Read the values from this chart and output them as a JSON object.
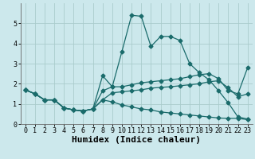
{
  "xlabel": "Humidex (Indice chaleur)",
  "background_color": "#cce8ec",
  "grid_color": "#aacccc",
  "line_color": "#1a6b6b",
  "xlim": [
    -0.5,
    23.5
  ],
  "ylim": [
    0,
    6
  ],
  "xticks": [
    0,
    1,
    2,
    3,
    4,
    5,
    6,
    7,
    8,
    9,
    10,
    11,
    12,
    13,
    14,
    15,
    16,
    17,
    18,
    19,
    20,
    21,
    22,
    23
  ],
  "yticks": [
    0,
    1,
    2,
    3,
    4,
    5
  ],
  "line1_x": [
    0,
    1,
    2,
    3,
    4,
    5,
    6,
    7,
    8,
    9,
    10,
    11,
    12,
    13,
    14,
    15,
    16,
    17,
    18,
    19,
    20,
    21,
    22,
    23
  ],
  "line1_y": [
    1.7,
    1.5,
    1.2,
    1.2,
    0.8,
    0.7,
    0.65,
    0.75,
    2.4,
    1.85,
    3.6,
    5.4,
    5.35,
    3.85,
    4.35,
    4.35,
    4.15,
    3.0,
    2.55,
    2.2,
    1.65,
    1.05,
    0.35,
    0.25
  ],
  "line2_x": [
    0,
    1,
    2,
    3,
    4,
    5,
    6,
    7,
    8,
    9,
    10,
    11,
    12,
    13,
    14,
    15,
    16,
    17,
    18,
    19,
    20,
    21,
    22,
    23
  ],
  "line2_y": [
    1.7,
    1.5,
    1.2,
    1.2,
    0.8,
    0.7,
    0.65,
    0.75,
    1.65,
    1.85,
    1.85,
    1.95,
    2.05,
    2.1,
    2.15,
    2.2,
    2.25,
    2.35,
    2.45,
    2.5,
    2.25,
    1.65,
    1.5,
    2.8
  ],
  "line3_x": [
    0,
    1,
    2,
    3,
    4,
    5,
    6,
    7,
    8,
    9,
    10,
    11,
    12,
    13,
    14,
    15,
    16,
    17,
    18,
    19,
    20,
    21,
    22,
    23
  ],
  "line3_y": [
    1.7,
    1.5,
    1.2,
    1.2,
    0.8,
    0.7,
    0.65,
    0.75,
    1.2,
    1.55,
    1.6,
    1.65,
    1.7,
    1.78,
    1.82,
    1.85,
    1.9,
    1.95,
    2.0,
    2.1,
    2.15,
    1.8,
    1.35,
    1.5
  ],
  "line4_x": [
    0,
    1,
    2,
    3,
    4,
    5,
    6,
    7,
    8,
    9,
    10,
    11,
    12,
    13,
    14,
    15,
    16,
    17,
    18,
    19,
    20,
    21,
    22,
    23
  ],
  "line4_y": [
    1.7,
    1.5,
    1.2,
    1.2,
    0.8,
    0.7,
    0.65,
    0.75,
    1.2,
    1.1,
    0.95,
    0.85,
    0.75,
    0.7,
    0.6,
    0.55,
    0.5,
    0.45,
    0.4,
    0.35,
    0.3,
    0.28,
    0.28,
    0.22
  ],
  "xlabel_fontsize": 8,
  "tick_fontsize": 6,
  "markersize": 2.5,
  "linewidth": 0.9
}
